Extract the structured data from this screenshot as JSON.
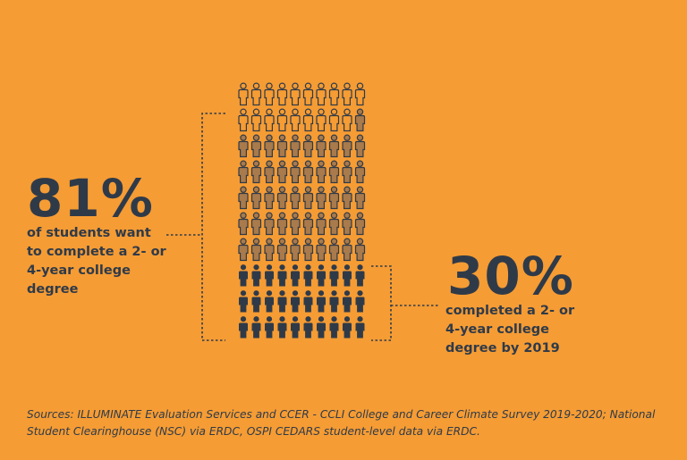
{
  "chart_data": {
    "type": "pictograph",
    "total_figures": 100,
    "stats": [
      {
        "value": 81,
        "label": "81%",
        "description": "of students want to complete a 2- or 4-year college degree"
      },
      {
        "value": 30,
        "label": "30%",
        "description": "completed a 2- or 4-year college degree by 2019"
      }
    ]
  },
  "colors": {
    "background": "#f59c34",
    "dark": "#2f3a49",
    "filled_outline": "#a87a4c"
  },
  "left_stat": {
    "value": "81%",
    "description": "of students want to complete a 2- or 4-year college degree"
  },
  "right_stat": {
    "value": "30%",
    "description": "completed a 2- or 4-year college degree by 2019"
  },
  "sources": "Sources: ILLUMINATE Evaluation Services and CCER - CCLI College and Career Climate Survey 2019-2020; National Student Clearinghouse (NSC) via ERDC, OSPI CEDARS student-level data via ERDC."
}
